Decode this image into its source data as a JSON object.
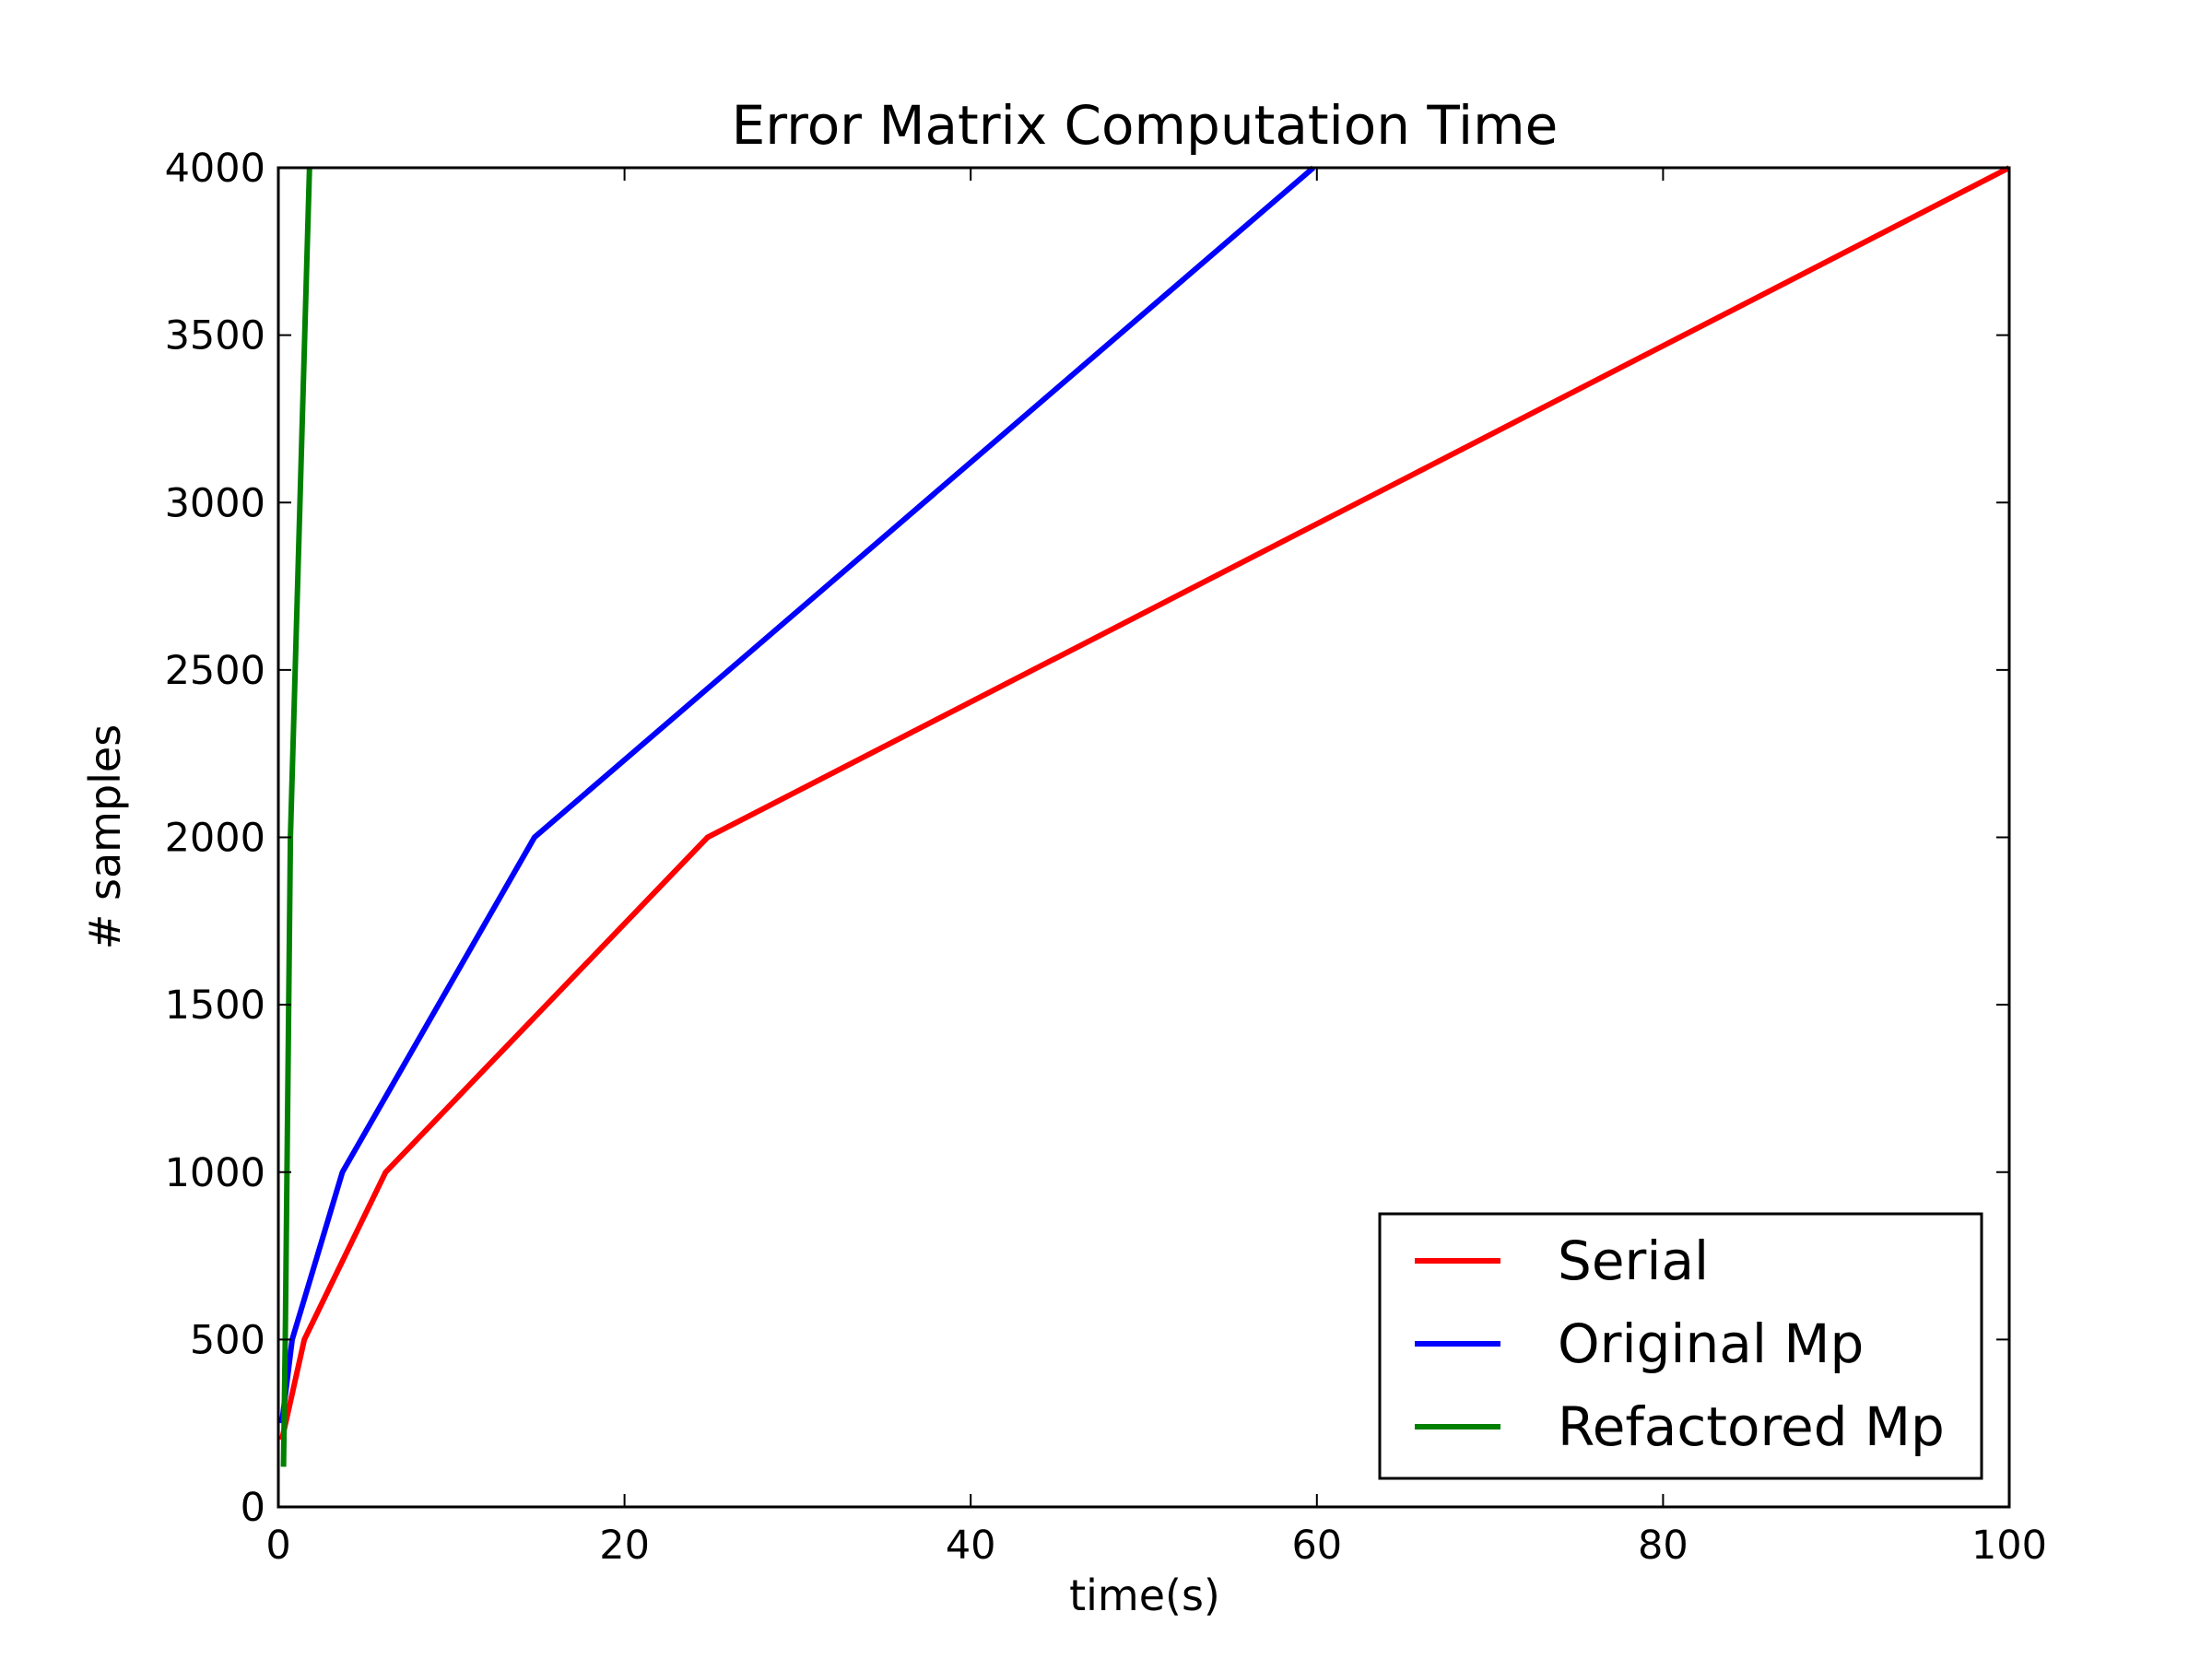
{
  "chart_data": {
    "type": "line",
    "title": "Error Matrix Computation Time",
    "xlabel": "time(s)",
    "ylabel": "# samples",
    "xlim": [
      0,
      100
    ],
    "ylim": [
      0,
      4000
    ],
    "xticks": [
      0,
      20,
      40,
      60,
      80,
      100
    ],
    "yticks": [
      0,
      500,
      1000,
      1500,
      2000,
      2500,
      3000,
      3500,
      4000
    ],
    "grid": false,
    "legend_position": "lower-right",
    "series": [
      {
        "name": "Serial",
        "color": "#ff0000",
        "x": [
          0.2,
          1.5,
          6.2,
          24.8,
          100
        ],
        "y": [
          200,
          500,
          1000,
          2000,
          4000
        ]
      },
      {
        "name": "Original Mp",
        "color": "#0000ff",
        "x": [
          0.2,
          0.8,
          3.7,
          14.8,
          59.8
        ],
        "y": [
          250,
          500,
          1000,
          2000,
          4000
        ]
      },
      {
        "name": "Refactored Mp",
        "color": "#008000",
        "x": [
          0.3,
          0.4,
          0.7,
          1.8
        ],
        "y": [
          120,
          500,
          2000,
          4000
        ]
      }
    ]
  }
}
